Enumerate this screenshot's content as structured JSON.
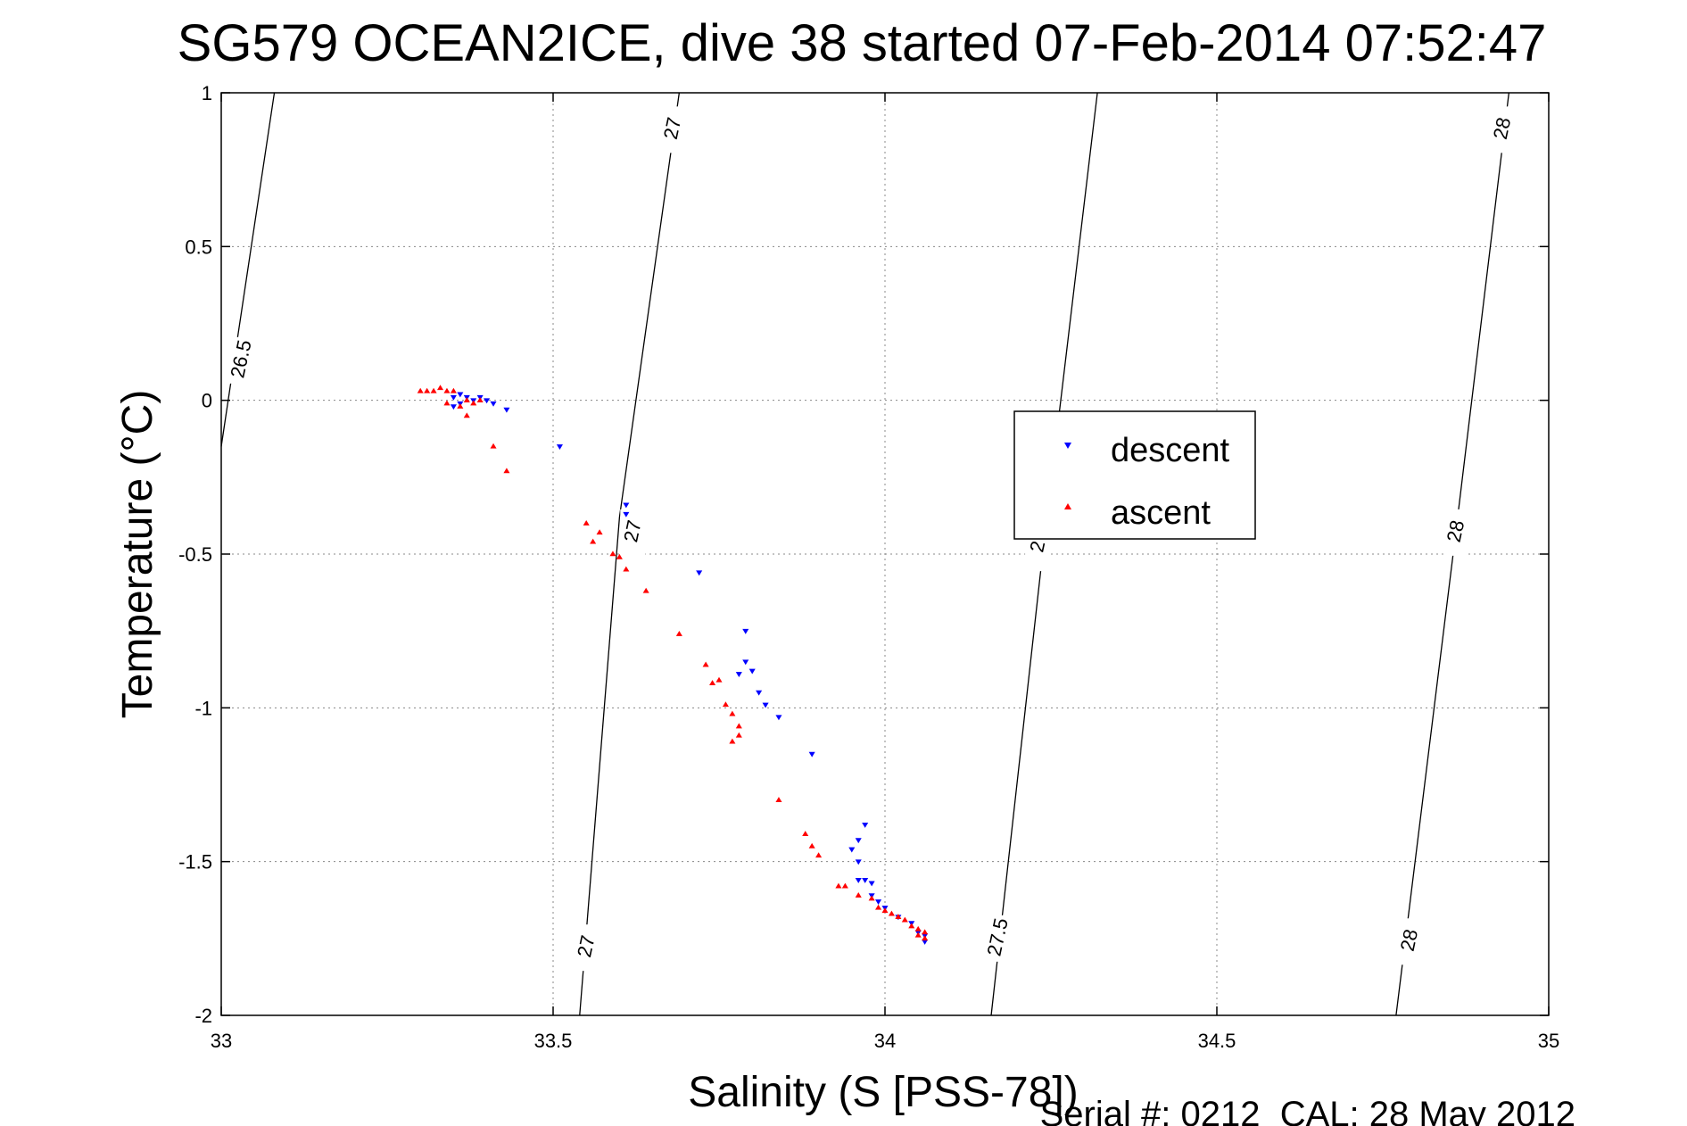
{
  "chart_data": {
    "type": "scatter",
    "title": "SG579 OCEAN2ICE, dive 38 started 07-Feb-2014 07:52:47",
    "xlabel": "Salinity (S [PSS-78])",
    "ylabel": "Temperature (°C)",
    "xlim": [
      33,
      35
    ],
    "ylim": [
      -2,
      1
    ],
    "xticks": [
      "33",
      "33.5",
      "34",
      "34.5",
      "35"
    ],
    "yticks": [
      "1",
      "0.5",
      "0",
      "-0.5",
      "-1",
      "-1.5",
      "-2"
    ],
    "grid": true,
    "legend_position": "center-right",
    "footer": "Serial #: 0212  CAL: 28 May 2012",
    "colors": {
      "descent": "#0000ff",
      "ascent": "#ff0000",
      "contour": "#000000"
    },
    "density_contours": [
      {
        "level": "26.5",
        "points": [
          [
            33.0,
            -0.15
          ],
          [
            33.08,
            1.0
          ]
        ],
        "labels": [
          {
            "text": "26.5",
            "at": [
              33.03,
              0.13
            ]
          }
        ]
      },
      {
        "level": "27",
        "points": [
          [
            33.54,
            -2.0
          ],
          [
            33.6,
            -0.38
          ],
          [
            33.69,
            1.0
          ]
        ],
        "labels": [
          {
            "text": "27",
            "at": [
              33.55,
              -1.78
            ]
          },
          {
            "text": "27",
            "at": [
              33.62,
              -0.43
            ]
          },
          {
            "text": "27",
            "at": [
              33.68,
              0.88
            ]
          }
        ]
      },
      {
        "level": "27.5",
        "points": [
          [
            34.16,
            -2.0
          ],
          [
            34.24,
            -0.45
          ],
          [
            34.32,
            1.0
          ]
        ],
        "labels": [
          {
            "text": "27.5",
            "at": [
              34.17,
              -1.75
            ]
          },
          {
            "text": "2",
            "at": [
              34.23,
              -0.48
            ]
          }
        ]
      },
      {
        "level": "28",
        "points": [
          [
            34.77,
            -2.0
          ],
          [
            34.86,
            -0.43
          ],
          [
            34.94,
            1.0
          ]
        ],
        "labels": [
          {
            "text": "28",
            "at": [
              34.79,
              -1.76
            ]
          },
          {
            "text": "28",
            "at": [
              34.86,
              -0.43
            ]
          },
          {
            "text": "28",
            "at": [
              34.93,
              0.88
            ]
          }
        ]
      }
    ],
    "series": [
      {
        "name": "descent",
        "marker": "triangle-down",
        "points": [
          [
            33.35,
            0.01
          ],
          [
            33.36,
            0.02
          ],
          [
            33.37,
            0.01
          ],
          [
            33.38,
            0.0
          ],
          [
            33.39,
            0.01
          ],
          [
            33.4,
            0.0
          ],
          [
            33.41,
            -0.01
          ],
          [
            33.43,
            -0.03
          ],
          [
            33.36,
            -0.01
          ],
          [
            33.35,
            -0.02
          ],
          [
            33.51,
            -0.15
          ],
          [
            33.61,
            -0.34
          ],
          [
            33.61,
            -0.37
          ],
          [
            33.72,
            -0.56
          ],
          [
            33.79,
            -0.75
          ],
          [
            33.78,
            -0.89
          ],
          [
            33.8,
            -0.88
          ],
          [
            33.79,
            -0.85
          ],
          [
            33.81,
            -0.95
          ],
          [
            33.82,
            -0.99
          ],
          [
            33.84,
            -1.03
          ],
          [
            33.89,
            -1.15
          ],
          [
            33.97,
            -1.38
          ],
          [
            33.96,
            -1.43
          ],
          [
            33.95,
            -1.46
          ],
          [
            33.96,
            -1.5
          ],
          [
            33.96,
            -1.56
          ],
          [
            33.97,
            -1.56
          ],
          [
            33.98,
            -1.57
          ],
          [
            33.98,
            -1.61
          ],
          [
            33.99,
            -1.63
          ],
          [
            34.0,
            -1.65
          ],
          [
            34.02,
            -1.68
          ],
          [
            34.04,
            -1.7
          ],
          [
            34.05,
            -1.73
          ],
          [
            34.06,
            -1.74
          ],
          [
            34.06,
            -1.76
          ]
        ]
      },
      {
        "name": "ascent",
        "marker": "triangle-up",
        "points": [
          [
            33.3,
            0.03
          ],
          [
            33.31,
            0.03
          ],
          [
            33.32,
            0.03
          ],
          [
            33.33,
            0.04
          ],
          [
            33.34,
            0.03
          ],
          [
            33.35,
            0.03
          ],
          [
            33.34,
            -0.01
          ],
          [
            33.37,
            0.0
          ],
          [
            33.36,
            -0.02
          ],
          [
            33.38,
            -0.01
          ],
          [
            33.39,
            0.0
          ],
          [
            33.37,
            -0.05
          ],
          [
            33.41,
            -0.15
          ],
          [
            33.43,
            -0.23
          ],
          [
            33.55,
            -0.4
          ],
          [
            33.57,
            -0.43
          ],
          [
            33.56,
            -0.46
          ],
          [
            33.59,
            -0.5
          ],
          [
            33.6,
            -0.51
          ],
          [
            33.61,
            -0.55
          ],
          [
            33.64,
            -0.62
          ],
          [
            33.69,
            -0.76
          ],
          [
            33.73,
            -0.86
          ],
          [
            33.74,
            -0.92
          ],
          [
            33.75,
            -0.91
          ],
          [
            33.76,
            -0.99
          ],
          [
            33.77,
            -1.02
          ],
          [
            33.78,
            -1.06
          ],
          [
            33.78,
            -1.09
          ],
          [
            33.77,
            -1.11
          ],
          [
            33.84,
            -1.3
          ],
          [
            33.88,
            -1.41
          ],
          [
            33.89,
            -1.45
          ],
          [
            33.9,
            -1.48
          ],
          [
            33.93,
            -1.58
          ],
          [
            33.94,
            -1.58
          ],
          [
            33.96,
            -1.61
          ],
          [
            33.98,
            -1.62
          ],
          [
            33.99,
            -1.65
          ],
          [
            34.0,
            -1.66
          ],
          [
            34.01,
            -1.67
          ],
          [
            34.02,
            -1.68
          ],
          [
            34.03,
            -1.69
          ],
          [
            34.04,
            -1.71
          ],
          [
            34.05,
            -1.72
          ],
          [
            34.06,
            -1.73
          ],
          [
            34.05,
            -1.74
          ],
          [
            34.06,
            -1.75
          ]
        ]
      }
    ]
  }
}
